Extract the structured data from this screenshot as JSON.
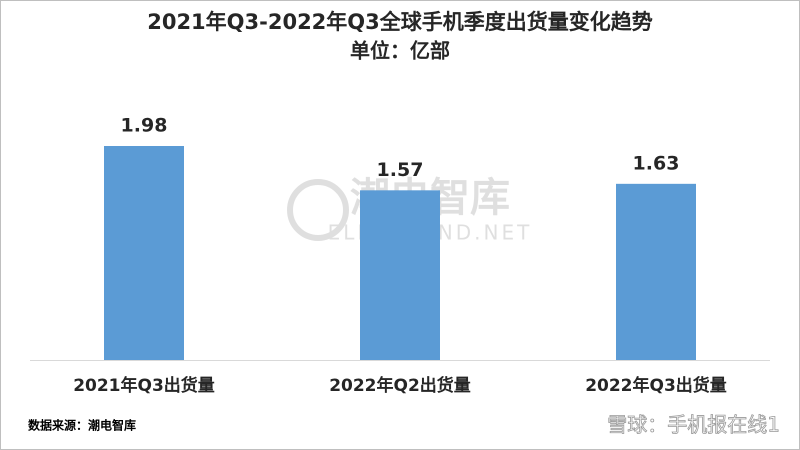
{
  "chart_data": {
    "type": "bar",
    "title": "2021年Q3-2022年Q3全球手机季度出货量变化趋势",
    "subtitle": "单位：亿部",
    "categories": [
      "2021年Q3出货量",
      "2022年Q2出货量",
      "2022年Q3出货量"
    ],
    "values": [
      1.98,
      1.57,
      1.63
    ],
    "color": "#5b9bd5",
    "source": "数据来源：潮电智库",
    "watermark": [
      "潮电智库",
      "ELECTREND.NET"
    ],
    "corner_mark": "雪球：手机报在线1"
  }
}
